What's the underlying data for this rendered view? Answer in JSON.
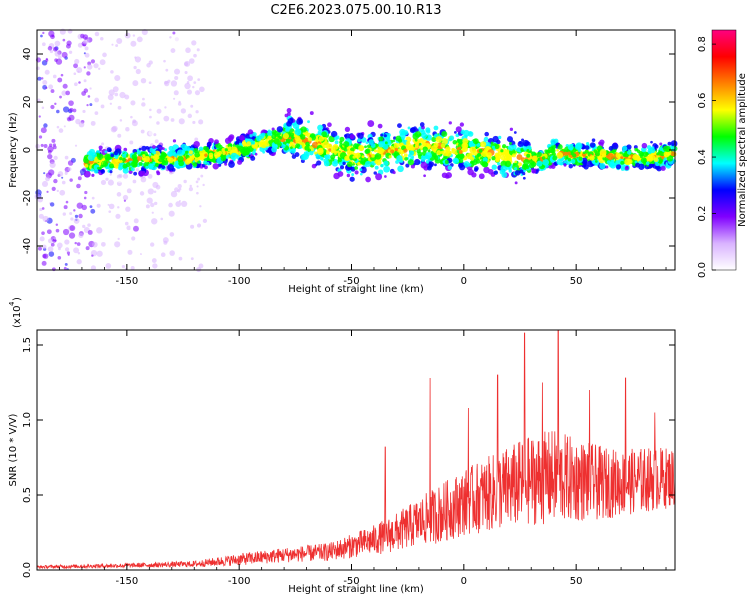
{
  "title": "C2E6.2023.075.00.10.R13",
  "chart_data": [
    {
      "type": "heatmap",
      "xlabel": "Height of straight line (km)",
      "ylabel": "Frequency (Hz)",
      "xlim": [
        -190,
        94
      ],
      "ylim": [
        -50,
        50
      ],
      "xticks": [
        -150,
        -100,
        -50,
        0,
        50
      ],
      "yticks": [
        -40,
        -20,
        0,
        20,
        40
      ],
      "colorbar": {
        "label": "Normalized spectral amplitude",
        "range": [
          0.0,
          0.85
        ],
        "ticks": [
          0.0,
          0.2,
          0.4,
          0.6,
          0.8
        ],
        "colormap": [
          "#ffffff",
          "#d9b3ff",
          "#8000ff",
          "#0000ff",
          "#00ffff",
          "#00ff00",
          "#ffff00",
          "#ff8000",
          "#ff0000",
          "#ff0080"
        ]
      },
      "center_line": {
        "x": [
          -190,
          -170,
          -160,
          -140,
          -120,
          -100,
          -90,
          -80,
          -70,
          -60,
          -50,
          -40,
          -30,
          -20,
          -10,
          0,
          10,
          20,
          30,
          35,
          40,
          50,
          60,
          70,
          80,
          94
        ],
        "y": [
          -5,
          -5,
          -5,
          -4,
          -3,
          0,
          3,
          5,
          4,
          1,
          -2,
          -2,
          0,
          2,
          1,
          0,
          -1,
          -3,
          -4,
          -4,
          -1,
          -2,
          -2,
          -3,
          -3,
          -2
        ]
      },
      "scatter_noise_region_km": [
        -190,
        -115
      ]
    },
    {
      "type": "line",
      "xlabel": "Height of straight line (km)",
      "ylabel": "SNR (10 * V/V)",
      "scale_label": "(x10",
      "scale_exponent": "4",
      "series_color": "#ee3030",
      "xlim": [
        -190,
        94
      ],
      "ylim": [
        0.0,
        1.6
      ],
      "xticks": [
        -150,
        -100,
        -50,
        0,
        50
      ],
      "yticks": [
        0.0,
        0.5,
        1.0,
        1.5
      ],
      "envelope": {
        "x": [
          -190,
          -150,
          -120,
          -100,
          -80,
          -60,
          -50,
          -40,
          -30,
          -20,
          -10,
          0,
          10,
          20,
          30,
          40,
          50,
          60,
          70,
          80,
          94
        ],
        "mean": [
          0.02,
          0.03,
          0.04,
          0.07,
          0.1,
          0.12,
          0.16,
          0.2,
          0.25,
          0.32,
          0.38,
          0.45,
          0.5,
          0.55,
          0.6,
          0.62,
          0.6,
          0.58,
          0.58,
          0.6,
          0.62
        ],
        "spread": [
          0.01,
          0.015,
          0.02,
          0.04,
          0.05,
          0.06,
          0.08,
          0.1,
          0.13,
          0.16,
          0.2,
          0.22,
          0.25,
          0.28,
          0.3,
          0.32,
          0.28,
          0.25,
          0.22,
          0.22,
          0.2
        ]
      },
      "peaks": [
        {
          "x": -35,
          "y": 0.82
        },
        {
          "x": -15,
          "y": 1.28
        },
        {
          "x": 2,
          "y": 1.08
        },
        {
          "x": 15,
          "y": 1.3
        },
        {
          "x": 27,
          "y": 1.58
        },
        {
          "x": 42,
          "y": 1.6
        },
        {
          "x": 35,
          "y": 1.25
        },
        {
          "x": 56,
          "y": 1.2
        },
        {
          "x": 72,
          "y": 1.28
        },
        {
          "x": 85,
          "y": 1.05
        }
      ]
    }
  ]
}
